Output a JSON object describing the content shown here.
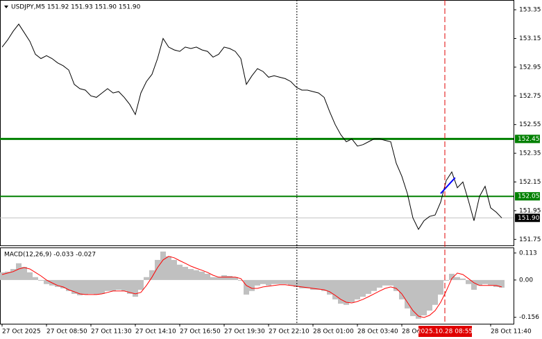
{
  "chart_data": [
    {
      "type": "line",
      "title": "USDJPY,M5  151.92 151.93 151.90 151.90",
      "color": "#000000",
      "xlim": [
        -0.375,
        92.125
      ],
      "ylim": [
        151.708,
        153.418
      ],
      "yticks": [
        153.35,
        153.15,
        152.95,
        152.75,
        152.55,
        152.35,
        152.15,
        151.95,
        151.75
      ],
      "values": [
        153.09,
        153.14,
        153.2,
        153.25,
        153.19,
        153.13,
        153.04,
        153.01,
        153.03,
        153.01,
        152.98,
        152.96,
        152.93,
        152.83,
        152.8,
        152.79,
        152.75,
        152.74,
        152.77,
        152.8,
        152.77,
        152.78,
        152.74,
        152.69,
        152.62,
        152.77,
        152.85,
        152.9,
        153.01,
        153.15,
        153.09,
        153.07,
        153.06,
        153.09,
        153.08,
        153.09,
        153.07,
        153.06,
        153.02,
        153.04,
        153.09,
        153.08,
        153.06,
        153.01,
        152.83,
        152.89,
        152.94,
        152.92,
        152.88,
        152.89,
        152.88,
        152.87,
        152.85,
        152.81,
        152.79,
        152.79,
        152.78,
        152.77,
        152.74,
        152.64,
        152.55,
        152.48,
        152.43,
        152.45,
        152.4,
        152.41,
        152.43,
        152.45,
        152.45,
        152.44,
        152.43,
        152.28,
        152.19,
        152.07,
        151.9,
        151.82,
        151.88,
        151.91,
        151.92,
        152.01,
        152.16,
        152.22,
        152.11,
        152.15,
        152.02,
        151.88,
        152.05,
        152.12,
        151.97,
        151.94,
        151.9
      ],
      "levels": [
        {
          "value": 152.45,
          "color": "#008000"
        },
        {
          "value": 152.05,
          "color": "#008000"
        },
        {
          "value": 151.9,
          "label": "151.90",
          "color": "#c0c0c0",
          "label_color": "#000000"
        }
      ],
      "trendline": {
        "x": [
          79,
          81.6
        ],
        "values": [
          152.07,
          152.18
        ],
        "color": "#0000ff"
      }
    },
    {
      "type": "bar",
      "title": "MACD(12,26,9) -0.033 -0.027",
      "color": "#c0c0c0",
      "xlim": [
        -0.375,
        92.125
      ],
      "ylim": [
        -0.183,
        0.136
      ],
      "yticks": [
        0.113,
        {
          "value": 0,
          "label": "0.00"
        },
        -0.156
      ],
      "values": [
        0.032,
        0.035,
        0.046,
        0.07,
        0.055,
        0.032,
        0.012,
        -0.003,
        -0.017,
        -0.023,
        -0.029,
        -0.035,
        -0.046,
        -0.058,
        -0.064,
        -0.061,
        -0.058,
        -0.061,
        -0.058,
        -0.046,
        -0.046,
        -0.041,
        -0.046,
        -0.058,
        -0.07,
        -0.041,
        0.012,
        0.041,
        0.084,
        0.119,
        0.099,
        0.084,
        0.064,
        0.055,
        0.046,
        0.041,
        0.035,
        0.026,
        0.012,
        0.012,
        0.02,
        0.017,
        0.012,
        -0.003,
        -0.061,
        -0.046,
        -0.023,
        -0.017,
        -0.023,
        -0.017,
        -0.017,
        -0.017,
        -0.023,
        -0.029,
        -0.035,
        -0.035,
        -0.041,
        -0.041,
        -0.046,
        -0.061,
        -0.081,
        -0.099,
        -0.104,
        -0.093,
        -0.081,
        -0.07,
        -0.058,
        -0.046,
        -0.032,
        -0.023,
        -0.023,
        -0.046,
        -0.081,
        -0.119,
        -0.151,
        -0.162,
        -0.148,
        -0.128,
        -0.104,
        -0.061,
        -0.003,
        0.026,
        0.012,
        0.006,
        -0.017,
        -0.041,
        -0.023,
        -0.017,
        -0.023,
        -0.029,
        -0.032
      ],
      "signal": {
        "color": "#ff0000",
        "values": [
          0.023,
          0.029,
          0.035,
          0.046,
          0.052,
          0.046,
          0.032,
          0.017,
          0,
          -0.012,
          -0.023,
          -0.029,
          -0.041,
          -0.049,
          -0.058,
          -0.061,
          -0.061,
          -0.061,
          -0.058,
          -0.052,
          -0.046,
          -0.046,
          -0.046,
          -0.052,
          -0.058,
          -0.052,
          -0.023,
          0.012,
          0.052,
          0.084,
          0.099,
          0.093,
          0.081,
          0.07,
          0.058,
          0.049,
          0.041,
          0.032,
          0.02,
          0.012,
          0.012,
          0.012,
          0.012,
          0.006,
          -0.023,
          -0.035,
          -0.035,
          -0.029,
          -0.026,
          -0.023,
          -0.02,
          -0.02,
          -0.023,
          -0.026,
          -0.029,
          -0.032,
          -0.035,
          -0.038,
          -0.041,
          -0.049,
          -0.064,
          -0.081,
          -0.093,
          -0.096,
          -0.09,
          -0.081,
          -0.07,
          -0.058,
          -0.046,
          -0.035,
          -0.029,
          -0.035,
          -0.058,
          -0.093,
          -0.128,
          -0.151,
          -0.157,
          -0.148,
          -0.128,
          -0.093,
          -0.046,
          0.006,
          0.029,
          0.023,
          0.006,
          -0.012,
          -0.023,
          -0.023,
          -0.023,
          -0.023,
          -0.029
        ]
      },
      "xticks": [
        {
          "value": 0,
          "label": "27 Oct 2025"
        },
        {
          "value": 8,
          "label": "27 Oct 08:50"
        },
        {
          "value": 16,
          "label": "27 Oct 11:30"
        },
        {
          "value": 24,
          "label": "27 Oct 14:10"
        },
        {
          "value": 32,
          "label": "27 Oct 16:50"
        },
        {
          "value": 40,
          "label": "27 Oct 19:30"
        },
        {
          "value": 48,
          "label": "27 Oct 22:10"
        },
        {
          "value": 56,
          "label": "28 Oct 01:00"
        },
        {
          "value": 64,
          "label": "28 Oct 03:40"
        },
        {
          "value": 72,
          "label": "28 Oct 0"
        },
        {
          "value": 88,
          "label": "28 Oct 11:40"
        }
      ],
      "vlines": [
        {
          "value": 53.1,
          "color": "#000000",
          "dash": "2,2"
        },
        {
          "value": 79.75,
          "color": "#e00000",
          "dash": "8,4",
          "label": "2025.10.28 08:55"
        }
      ]
    }
  ]
}
